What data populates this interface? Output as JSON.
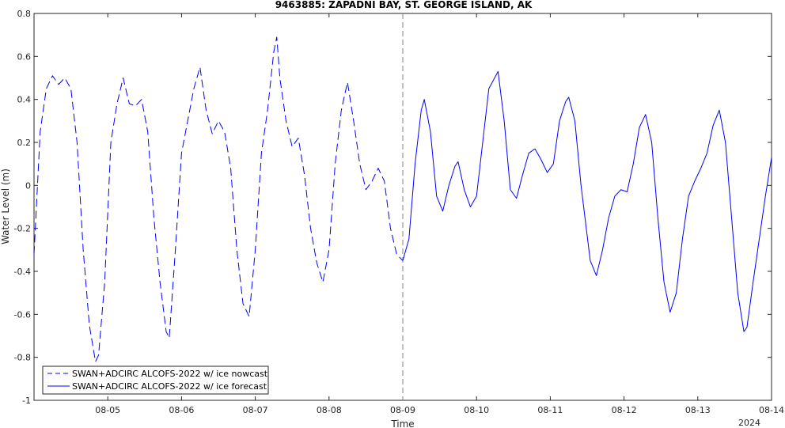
{
  "chart_data": {
    "type": "line",
    "title": "9463885: ZAPADNI BAY, ST. GEORGE ISLAND, AK",
    "xlabel": "Time",
    "ylabel": "Water Level (m)",
    "year_label": "2024",
    "xlim": [
      "2024-08-04 00:00",
      "2024-08-14 00:00"
    ],
    "ylim": [
      -1,
      0.8
    ],
    "x_ticks": [
      "08-05",
      "08-06",
      "08-07",
      "08-08",
      "08-09",
      "08-10",
      "08-11",
      "08-12",
      "08-13",
      "08-14"
    ],
    "y_ticks": [
      "0.8",
      "0.6",
      "0.4",
      "0.2",
      "0",
      "-0.2",
      "-0.4",
      "-0.6",
      "-0.8",
      "-1"
    ],
    "grid": false,
    "legend_position": "bottom-left",
    "divider_x": "2024-08-09 00:00",
    "colors": {
      "series": "#0000ff",
      "divider": "#808080",
      "axis": "#262626"
    },
    "series": [
      {
        "name": "SWAN+ADCIRC ALCOFS-2022 w/ ice nowcast",
        "style": "dashed",
        "points": [
          [
            "2024-08-04 00:00",
            -0.32
          ],
          [
            "2024-08-04 02:00",
            0.25
          ],
          [
            "2024-08-04 04:00",
            0.45
          ],
          [
            "2024-08-04 06:00",
            0.51
          ],
          [
            "2024-08-04 08:00",
            0.47
          ],
          [
            "2024-08-04 10:00",
            0.5
          ],
          [
            "2024-08-04 12:00",
            0.45
          ],
          [
            "2024-08-04 14:00",
            0.2
          ],
          [
            "2024-08-04 16:00",
            -0.3
          ],
          [
            "2024-08-04 18:00",
            -0.65
          ],
          [
            "2024-08-04 20:00",
            -0.82
          ],
          [
            "2024-08-04 21:00",
            -0.79
          ],
          [
            "2024-08-04 23:00",
            -0.45
          ],
          [
            "2024-08-05 01:00",
            0.2
          ],
          [
            "2024-08-05 03:00",
            0.38
          ],
          [
            "2024-08-05 05:00",
            0.5
          ],
          [
            "2024-08-05 07:00",
            0.38
          ],
          [
            "2024-08-05 09:00",
            0.37
          ],
          [
            "2024-08-05 11:00",
            0.4
          ],
          [
            "2024-08-05 13:00",
            0.25
          ],
          [
            "2024-08-05 15:00",
            -0.15
          ],
          [
            "2024-08-05 17:00",
            -0.45
          ],
          [
            "2024-08-05 19:00",
            -0.68
          ],
          [
            "2024-08-05 20:00",
            -0.71
          ],
          [
            "2024-08-05 22:00",
            -0.3
          ],
          [
            "2024-08-06 00:00",
            0.15
          ],
          [
            "2024-08-06 02:00",
            0.3
          ],
          [
            "2024-08-06 04:00",
            0.45
          ],
          [
            "2024-08-06 06:00",
            0.55
          ],
          [
            "2024-08-06 08:00",
            0.35
          ],
          [
            "2024-08-06 10:00",
            0.24
          ],
          [
            "2024-08-06 12:00",
            0.3
          ],
          [
            "2024-08-06 14:00",
            0.25
          ],
          [
            "2024-08-06 16:00",
            0.08
          ],
          [
            "2024-08-06 18:00",
            -0.3
          ],
          [
            "2024-08-06 20:00",
            -0.55
          ],
          [
            "2024-08-06 22:00",
            -0.61
          ],
          [
            "2024-08-07 00:00",
            -0.3
          ],
          [
            "2024-08-07 02:00",
            0.15
          ],
          [
            "2024-08-07 04:00",
            0.35
          ],
          [
            "2024-08-07 06:00",
            0.62
          ],
          [
            "2024-08-07 07:00",
            0.69
          ],
          [
            "2024-08-07 08:00",
            0.5
          ],
          [
            "2024-08-07 10:00",
            0.3
          ],
          [
            "2024-08-07 12:00",
            0.18
          ],
          [
            "2024-08-07 14:00",
            0.22
          ],
          [
            "2024-08-07 16:00",
            0.05
          ],
          [
            "2024-08-07 18:00",
            -0.2
          ],
          [
            "2024-08-07 20:00",
            -0.36
          ],
          [
            "2024-08-07 22:00",
            -0.45
          ],
          [
            "2024-08-08 00:00",
            -0.3
          ],
          [
            "2024-08-08 02:00",
            0.1
          ],
          [
            "2024-08-08 04:00",
            0.35
          ],
          [
            "2024-08-08 06:00",
            0.48
          ],
          [
            "2024-08-08 08:00",
            0.3
          ],
          [
            "2024-08-08 10:00",
            0.1
          ],
          [
            "2024-08-08 12:00",
            -0.02
          ],
          [
            "2024-08-08 14:00",
            0.02
          ],
          [
            "2024-08-08 16:00",
            0.08
          ],
          [
            "2024-08-08 18:00",
            0.02
          ],
          [
            "2024-08-08 20:00",
            -0.2
          ],
          [
            "2024-08-08 22:00",
            -0.32
          ],
          [
            "2024-08-09 00:00",
            -0.35
          ]
        ]
      },
      {
        "name": "SWAN+ADCIRC ALCOFS-2022 w/ ice forecast",
        "style": "solid",
        "points": [
          [
            "2024-08-09 00:00",
            -0.35
          ],
          [
            "2024-08-09 02:00",
            -0.25
          ],
          [
            "2024-08-09 04:00",
            0.1
          ],
          [
            "2024-08-09 06:00",
            0.35
          ],
          [
            "2024-08-09 07:00",
            0.4
          ],
          [
            "2024-08-09 09:00",
            0.25
          ],
          [
            "2024-08-09 11:00",
            -0.05
          ],
          [
            "2024-08-09 13:00",
            -0.12
          ],
          [
            "2024-08-09 15:00",
            0.0
          ],
          [
            "2024-08-09 17:00",
            0.09
          ],
          [
            "2024-08-09 18:00",
            0.11
          ],
          [
            "2024-08-09 20:00",
            -0.02
          ],
          [
            "2024-08-09 22:00",
            -0.1
          ],
          [
            "2024-08-10 00:00",
            -0.05
          ],
          [
            "2024-08-10 02:00",
            0.2
          ],
          [
            "2024-08-10 04:00",
            0.45
          ],
          [
            "2024-08-10 07:00",
            0.53
          ],
          [
            "2024-08-10 09:00",
            0.3
          ],
          [
            "2024-08-10 11:00",
            -0.02
          ],
          [
            "2024-08-10 13:00",
            -0.06
          ],
          [
            "2024-08-10 15:00",
            0.05
          ],
          [
            "2024-08-10 17:00",
            0.15
          ],
          [
            "2024-08-10 19:00",
            0.17
          ],
          [
            "2024-08-10 21:00",
            0.12
          ],
          [
            "2024-08-10 23:00",
            0.06
          ],
          [
            "2024-08-11 01:00",
            0.1
          ],
          [
            "2024-08-11 03:00",
            0.3
          ],
          [
            "2024-08-11 05:00",
            0.39
          ],
          [
            "2024-08-11 06:00",
            0.41
          ],
          [
            "2024-08-11 08:00",
            0.3
          ],
          [
            "2024-08-11 10:00",
            0.0
          ],
          [
            "2024-08-11 13:00",
            -0.35
          ],
          [
            "2024-08-11 15:00",
            -0.42
          ],
          [
            "2024-08-11 17:00",
            -0.3
          ],
          [
            "2024-08-11 19:00",
            -0.15
          ],
          [
            "2024-08-11 21:00",
            -0.05
          ],
          [
            "2024-08-11 23:00",
            -0.02
          ],
          [
            "2024-08-12 01:00",
            -0.03
          ],
          [
            "2024-08-12 03:00",
            0.1
          ],
          [
            "2024-08-12 05:00",
            0.27
          ],
          [
            "2024-08-12 07:00",
            0.33
          ],
          [
            "2024-08-12 09:00",
            0.2
          ],
          [
            "2024-08-12 11:00",
            -0.15
          ],
          [
            "2024-08-12 13:00",
            -0.45
          ],
          [
            "2024-08-12 15:00",
            -0.59
          ],
          [
            "2024-08-12 17:00",
            -0.5
          ],
          [
            "2024-08-12 19:00",
            -0.25
          ],
          [
            "2024-08-12 21:00",
            -0.05
          ],
          [
            "2024-08-12 23:00",
            0.02
          ],
          [
            "2024-08-13 01:00",
            0.08
          ],
          [
            "2024-08-13 03:00",
            0.15
          ],
          [
            "2024-08-13 05:00",
            0.28
          ],
          [
            "2024-08-13 07:00",
            0.35
          ],
          [
            "2024-08-13 09:00",
            0.2
          ],
          [
            "2024-08-13 11:00",
            -0.15
          ],
          [
            "2024-08-13 13:00",
            -0.5
          ],
          [
            "2024-08-13 15:00",
            -0.68
          ],
          [
            "2024-08-13 16:00",
            -0.66
          ],
          [
            "2024-08-13 18:00",
            -0.45
          ],
          [
            "2024-08-13 20:00",
            -0.25
          ],
          [
            "2024-08-13 22:00",
            -0.05
          ],
          [
            "2024-08-14 00:00",
            0.13
          ]
        ]
      }
    ]
  }
}
